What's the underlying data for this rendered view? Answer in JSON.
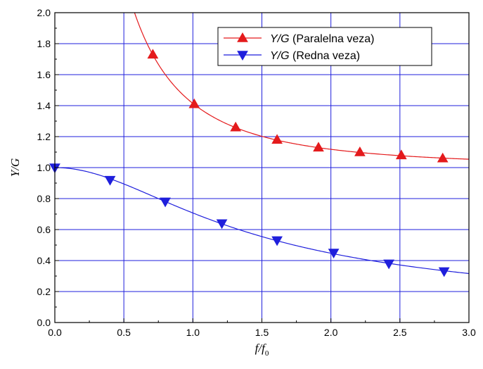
{
  "chart_data": {
    "type": "line",
    "title": "",
    "xlabel": "f/f0",
    "ylabel": "Y/G",
    "xlim": [
      0.0,
      3.0
    ],
    "ylim": [
      0.0,
      2.0
    ],
    "x_ticks": [
      "0.0",
      "0.5",
      "1.0",
      "1.5",
      "2.0",
      "2.5",
      "3.0"
    ],
    "y_ticks": [
      "0.0",
      "0.2",
      "0.4",
      "0.6",
      "0.8",
      "1.0",
      "1.2",
      "1.4",
      "1.6",
      "1.8",
      "2.0"
    ],
    "grid": true,
    "legend_position": "top-right",
    "series": [
      {
        "name": "Y/G (Paralelna veza)",
        "legend_italic": "Y/G",
        "legend_rest": " (Paralelna veza)",
        "color": "#e41a1c",
        "marker": "triangle-up",
        "x": [
          0.71,
          1.01,
          1.31,
          1.61,
          1.91,
          2.21,
          2.51,
          2.81
        ],
        "y": [
          1.73,
          1.41,
          1.26,
          1.18,
          1.13,
          1.1,
          1.08,
          1.06
        ]
      },
      {
        "name": "Y/G (Redna veza)",
        "legend_italic": "Y/G",
        "legend_rest": " (Redna veza)",
        "color": "#1f1fdc",
        "marker": "triangle-down",
        "x": [
          0.0,
          0.4,
          0.8,
          1.21,
          1.61,
          2.02,
          2.42,
          2.82
        ],
        "y": [
          1.0,
          0.92,
          0.78,
          0.64,
          0.53,
          0.45,
          0.38,
          0.33
        ]
      }
    ]
  }
}
